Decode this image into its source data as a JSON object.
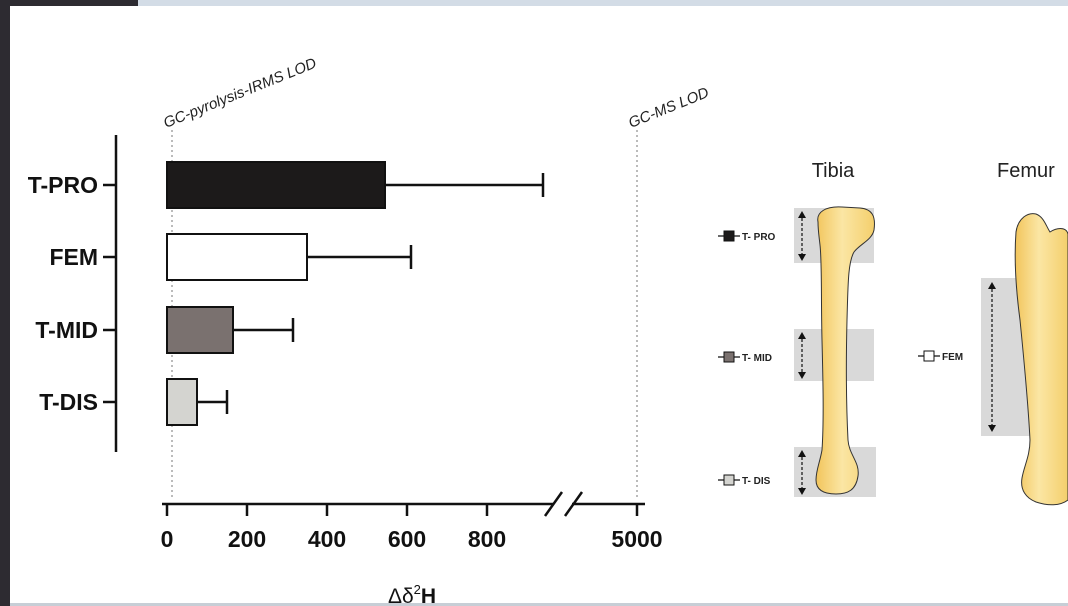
{
  "chart_data": {
    "type": "bar",
    "orientation": "horizontal",
    "categories": [
      "T-PRO",
      "FEM",
      "T-MID",
      "T-DIS"
    ],
    "values": [
      545,
      350,
      165,
      75
    ],
    "errors": [
      395,
      260,
      150,
      75
    ],
    "bar_colors": [
      "#1c1a1a",
      "#ffffff",
      "#7a716f",
      "#d4d4d0"
    ],
    "x_ticks": [
      "0",
      "200",
      "400",
      "600",
      "800",
      "5000"
    ],
    "xlabel_delta": "Δδ",
    "xlabel_sup": "2",
    "xlabel_h": "H",
    "xlim": [
      0,
      1000
    ],
    "axis_break": true,
    "lod_lines": [
      {
        "label": "GC-pyrolysis-IRMS LOD",
        "value": 10
      },
      {
        "label": "GC-MS LOD",
        "value": 5000
      }
    ]
  },
  "illustration": {
    "tibia_title": "Tibia",
    "femur_title": "Femur",
    "legend": [
      {
        "label": "T- PRO",
        "color": "#1c1a1a"
      },
      {
        "label": "T- MID",
        "color": "#7a716f"
      },
      {
        "label": "T- DIS",
        "color": "#d4d4d0"
      },
      {
        "label": "FEM",
        "color": "#ffffff"
      }
    ],
    "bone_color": "#f6d67a",
    "region_color": "#d9d9d9"
  },
  "colors": {
    "axis": "#111111",
    "frame_dark": "#2d2b31",
    "frame_light": "#d3dce6"
  }
}
